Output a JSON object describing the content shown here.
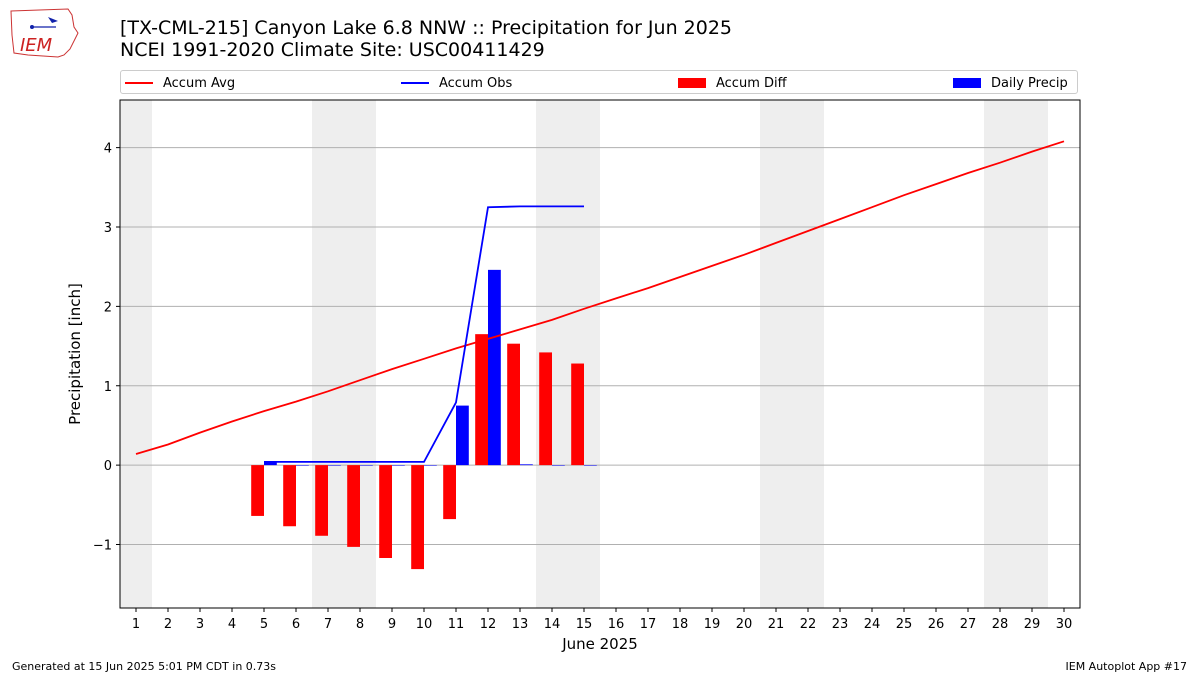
{
  "header": {
    "title_line1": "[TX-CML-215] Canyon Lake 6.8 NNW :: Precipitation for Jun 2025",
    "title_line2": "NCEI 1991-2020 Climate Site: USC00411429",
    "logo_text": "IEM"
  },
  "footer": {
    "left": "Generated at 15 Jun 2025 5:01 PM CDT in 0.73s",
    "right": "IEM Autoplot App #17"
  },
  "chart_data": {
    "type": "bar",
    "xlabel": "June 2025",
    "ylabel": "Precipitation [inch]",
    "xlim": [
      0.5,
      30.5
    ],
    "ylim": [
      -1.8,
      4.6
    ],
    "yticks": [
      -1,
      0,
      1,
      2,
      3,
      4
    ],
    "ytick_labels": [
      "−1",
      "0",
      "1",
      "2",
      "3",
      "4"
    ],
    "xticks": [
      1,
      2,
      3,
      4,
      5,
      6,
      7,
      8,
      9,
      10,
      11,
      12,
      13,
      14,
      15,
      16,
      17,
      18,
      19,
      20,
      21,
      22,
      23,
      24,
      25,
      26,
      27,
      28,
      29,
      30
    ],
    "grid": "horizontal",
    "legend_placement": "top",
    "weekend_shading": [
      [
        0.5,
        1.5
      ],
      [
        6.5,
        8.5
      ],
      [
        13.5,
        15.5
      ],
      [
        20.5,
        22.5
      ],
      [
        27.5,
        29.5
      ]
    ],
    "series": [
      {
        "name": "Accum Avg",
        "kind": "line",
        "color": "#ff0000",
        "x": [
          1,
          2,
          3,
          4,
          5,
          6,
          7,
          8,
          9,
          10,
          11,
          12,
          13,
          14,
          15,
          16,
          17,
          18,
          19,
          20,
          21,
          22,
          23,
          24,
          25,
          26,
          27,
          28,
          29,
          30
        ],
        "values": [
          0.14,
          0.26,
          0.41,
          0.55,
          0.68,
          0.8,
          0.93,
          1.07,
          1.21,
          1.34,
          1.47,
          1.59,
          1.71,
          1.83,
          1.97,
          2.1,
          2.23,
          2.37,
          2.51,
          2.65,
          2.8,
          2.95,
          3.1,
          3.25,
          3.4,
          3.54,
          3.68,
          3.81,
          3.95,
          4.08
        ]
      },
      {
        "name": "Accum Obs",
        "kind": "line",
        "color": "#0000ff",
        "x": [
          5,
          6,
          7,
          8,
          9,
          10,
          11,
          12,
          13,
          14,
          15
        ],
        "values": [
          0.04,
          0.04,
          0.04,
          0.04,
          0.04,
          0.04,
          0.79,
          3.25,
          3.26,
          3.26,
          3.26
        ]
      },
      {
        "name": "Accum Diff",
        "kind": "bar",
        "color": "#ff0000",
        "x": [
          5,
          6,
          7,
          8,
          9,
          10,
          11,
          12,
          13,
          14,
          15
        ],
        "values": [
          -0.64,
          -0.77,
          -0.89,
          -1.03,
          -1.17,
          -1.31,
          -0.68,
          1.65,
          1.53,
          1.42,
          1.28
        ]
      },
      {
        "name": "Daily Precip",
        "kind": "bar",
        "color": "#0000ff",
        "x": [
          5,
          6,
          7,
          8,
          9,
          10,
          11,
          12,
          13,
          14,
          15
        ],
        "values": [
          0.04,
          0,
          0,
          0,
          0,
          0,
          0.75,
          2.46,
          0.01,
          0,
          0
        ]
      }
    ]
  }
}
